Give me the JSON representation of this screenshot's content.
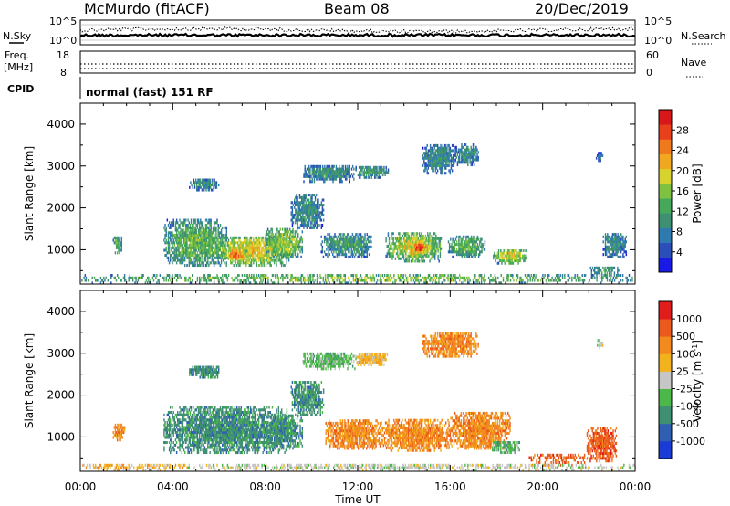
{
  "header": {
    "station": "McMurdo (fitACF)",
    "beam": "Beam 08",
    "date": "20/Dec/2019"
  },
  "top_panel": {
    "left_label": "N.Sky",
    "right_label": "N.Search",
    "left_ticks": [
      "10^5",
      "10^0"
    ],
    "right_ticks": [
      "10^5",
      "10^0"
    ]
  },
  "freq_panel": {
    "left_label_1": "Freq.",
    "left_label_2": "[MHz]",
    "right_label": "Nave",
    "left_ticks": [
      "18",
      "8"
    ],
    "right_ticks": [
      "60",
      "0"
    ],
    "freq_value": 10,
    "nave_value": 25
  },
  "cpid": {
    "label": "CPID",
    "value": "normal (fast) 151 RF"
  },
  "chart_data": [
    {
      "type": "heatmap",
      "name": "power",
      "ylabel": "Slant Range [km]",
      "xlabel": "Time UT",
      "x_ticks": [
        "00:00",
        "04:00",
        "08:00",
        "12:00",
        "16:00",
        "20:00",
        "00:00"
      ],
      "xlim": [
        0,
        24
      ],
      "ylim": [
        180,
        4500
      ],
      "y_ticks": [
        1000,
        2000,
        3000,
        4000
      ],
      "colorbar_label": "Power [dB]",
      "colorbar_ticks": [
        "28",
        "24",
        "20",
        "16",
        "12",
        "8",
        "4"
      ],
      "colors": [
        "#1a1ae6",
        "#2a4fb8",
        "#2f7bb0",
        "#3f8f73",
        "#46a85a",
        "#7fc241",
        "#d8d22e",
        "#f0a820",
        "#ef7a1e",
        "#e8401c",
        "#d81818"
      ],
      "clusters": [
        {
          "t": [
            3.6,
            6.3
          ],
          "r": [
            600,
            1700
          ],
          "level": 0.45
        },
        {
          "t": [
            5.8,
            9.0
          ],
          "r": [
            600,
            1300
          ],
          "level": 0.65
        },
        {
          "t": [
            6.2,
            7.2
          ],
          "r": [
            700,
            1000
          ],
          "level": 0.85
        },
        {
          "t": [
            8.0,
            9.6
          ],
          "r": [
            800,
            1500
          ],
          "level": 0.55
        },
        {
          "t": [
            10.4,
            12.6
          ],
          "r": [
            800,
            1400
          ],
          "level": 0.35
        },
        {
          "t": [
            13.2,
            15.6
          ],
          "r": [
            700,
            1400
          ],
          "level": 0.6
        },
        {
          "t": [
            14.3,
            15.0
          ],
          "r": [
            850,
            1200
          ],
          "level": 0.9
        },
        {
          "t": [
            15.9,
            17.5
          ],
          "r": [
            800,
            1300
          ],
          "level": 0.45
        },
        {
          "t": [
            17.8,
            19.3
          ],
          "r": [
            650,
            1000
          ],
          "level": 0.6
        },
        {
          "t": [
            4.7,
            6.0
          ],
          "r": [
            2400,
            2700
          ],
          "level": 0.3
        },
        {
          "t": [
            9.1,
            10.5
          ],
          "r": [
            1500,
            2300
          ],
          "level": 0.3
        },
        {
          "t": [
            9.6,
            11.9
          ],
          "r": [
            2600,
            3000
          ],
          "level": 0.3
        },
        {
          "t": [
            11.9,
            13.3
          ],
          "r": [
            2700,
            3000
          ],
          "level": 0.35
        },
        {
          "t": [
            14.8,
            16.2
          ],
          "r": [
            2800,
            3500
          ],
          "level": 0.3
        },
        {
          "t": [
            16.2,
            17.2
          ],
          "r": [
            3000,
            3500
          ],
          "level": 0.3
        },
        {
          "t": [
            1.4,
            1.8
          ],
          "r": [
            900,
            1300
          ],
          "level": 0.45
        },
        {
          "t": [
            22.0,
            23.3
          ],
          "r": [
            300,
            600
          ],
          "level": 0.35
        },
        {
          "t": [
            22.6,
            23.6
          ],
          "r": [
            800,
            1400
          ],
          "level": 0.3
        },
        {
          "t": [
            22.3,
            22.6
          ],
          "r": [
            3100,
            3300
          ],
          "level": 0.2
        },
        {
          "t": [
            0.0,
            24.0
          ],
          "r": [
            180,
            380
          ],
          "level": 0.5
        }
      ]
    },
    {
      "type": "heatmap",
      "name": "velocity",
      "ylabel": "Slant Range [km]",
      "xlabel": "Time UT",
      "x_ticks": [
        "00:00",
        "04:00",
        "08:00",
        "12:00",
        "16:00",
        "20:00",
        "00:00"
      ],
      "xlim": [
        0,
        24
      ],
      "ylim": [
        180,
        4500
      ],
      "y_ticks": [
        1000,
        2000,
        3000,
        4000
      ],
      "colorbar_label": "Velocity [m s",
      "colorbar_sup": "-1",
      "colorbar_label_end": "]",
      "colorbar_ticks": [
        "1000",
        "500",
        "100",
        "25",
        "-25",
        "-100",
        "-500",
        "-1000"
      ],
      "colors": [
        "#1a3bd6",
        "#2f5fb0",
        "#3f8f73",
        "#4db84a",
        "#c6c6c6",
        "#f2b21e",
        "#f28a1e",
        "#ea5a1c",
        "#e01c1c"
      ],
      "clusters": [
        {
          "t": [
            3.6,
            9.0
          ],
          "r": [
            600,
            1700
          ],
          "level": 2
        },
        {
          "t": [
            8.0,
            9.6
          ],
          "r": [
            700,
            1500
          ],
          "level": 2
        },
        {
          "t": [
            4.7,
            6.0
          ],
          "r": [
            2400,
            2700
          ],
          "level": 2
        },
        {
          "t": [
            9.1,
            10.5
          ],
          "r": [
            1500,
            2300
          ],
          "level": 2
        },
        {
          "t": [
            9.6,
            11.9
          ],
          "r": [
            2600,
            3000
          ],
          "level": 3
        },
        {
          "t": [
            11.9,
            13.3
          ],
          "r": [
            2700,
            3000
          ],
          "level": 5
        },
        {
          "t": [
            10.6,
            13.0
          ],
          "r": [
            700,
            1400
          ],
          "level": 6
        },
        {
          "t": [
            13.0,
            16.0
          ],
          "r": [
            650,
            1400
          ],
          "level": 6
        },
        {
          "t": [
            16.0,
            18.6
          ],
          "r": [
            700,
            1600
          ],
          "level": 6
        },
        {
          "t": [
            17.8,
            19.0
          ],
          "r": [
            600,
            900
          ],
          "level": 3
        },
        {
          "t": [
            19.4,
            21.8
          ],
          "r": [
            300,
            600
          ],
          "level": 7
        },
        {
          "t": [
            21.9,
            23.2
          ],
          "r": [
            400,
            1200
          ],
          "level": 7
        },
        {
          "t": [
            14.8,
            17.2
          ],
          "r": [
            2900,
            3500
          ],
          "level": 6
        },
        {
          "t": [
            1.4,
            1.9
          ],
          "r": [
            900,
            1300
          ],
          "level": 6
        },
        {
          "t": [
            22.3,
            22.6
          ],
          "r": [
            3100,
            3300
          ],
          "level": 4
        },
        {
          "t": [
            0.0,
            4.5
          ],
          "r": [
            180,
            350
          ],
          "level": 5
        },
        {
          "t": [
            4.5,
            24.0
          ],
          "r": [
            180,
            330
          ],
          "level": 4
        }
      ]
    }
  ]
}
